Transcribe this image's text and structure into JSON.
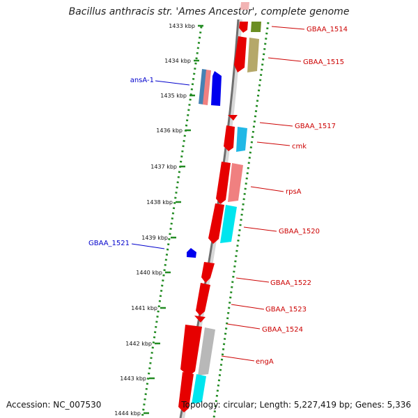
{
  "map": {
    "title": "Bacillus anthracis str. 'Ames Ancestor', complete genome",
    "accession_text": "Accession: NC_007530",
    "stats_text": "Topology: circular; Length: 5,227,419 bp; Genes: 5,336",
    "colors": {
      "backbone": "#6f6f6f",
      "dots": "#228b22",
      "forward_label": "#cc0000",
      "reverse_label": "#0000cc"
    },
    "ticks": [
      "1433 kbp",
      "1434 kbp",
      "1435 kbp",
      "1436 kbp",
      "1437 kbp",
      "1438 kbp",
      "1439 kbp",
      "1440 kbp",
      "1441 kbp",
      "1442 kbp",
      "1443 kbp",
      "1444 kbp"
    ],
    "genes": [
      {
        "name": "GBAA_1514",
        "strand": "forward",
        "color": "#cc0000"
      },
      {
        "name": "GBAA_1515",
        "strand": "forward",
        "color": "#cc0000"
      },
      {
        "name": "ansA-1",
        "strand": "reverse",
        "color": "#0000cc"
      },
      {
        "name": "GBAA_1517",
        "strand": "forward",
        "color": "#cc0000"
      },
      {
        "name": "cmk",
        "strand": "forward",
        "color": "#cc0000"
      },
      {
        "name": "rpsA",
        "strand": "forward",
        "color": "#cc0000"
      },
      {
        "name": "GBAA_1520",
        "strand": "forward",
        "color": "#cc0000"
      },
      {
        "name": "GBAA_1521",
        "strand": "reverse",
        "color": "#0000cc"
      },
      {
        "name": "GBAA_1522",
        "strand": "forward",
        "color": "#cc0000"
      },
      {
        "name": "GBAA_1523",
        "strand": "forward",
        "color": "#cc0000"
      },
      {
        "name": "GBAA_1524",
        "strand": "forward",
        "color": "#cc0000"
      },
      {
        "name": "engA",
        "strand": "forward",
        "color": "#cc0000"
      }
    ]
  }
}
